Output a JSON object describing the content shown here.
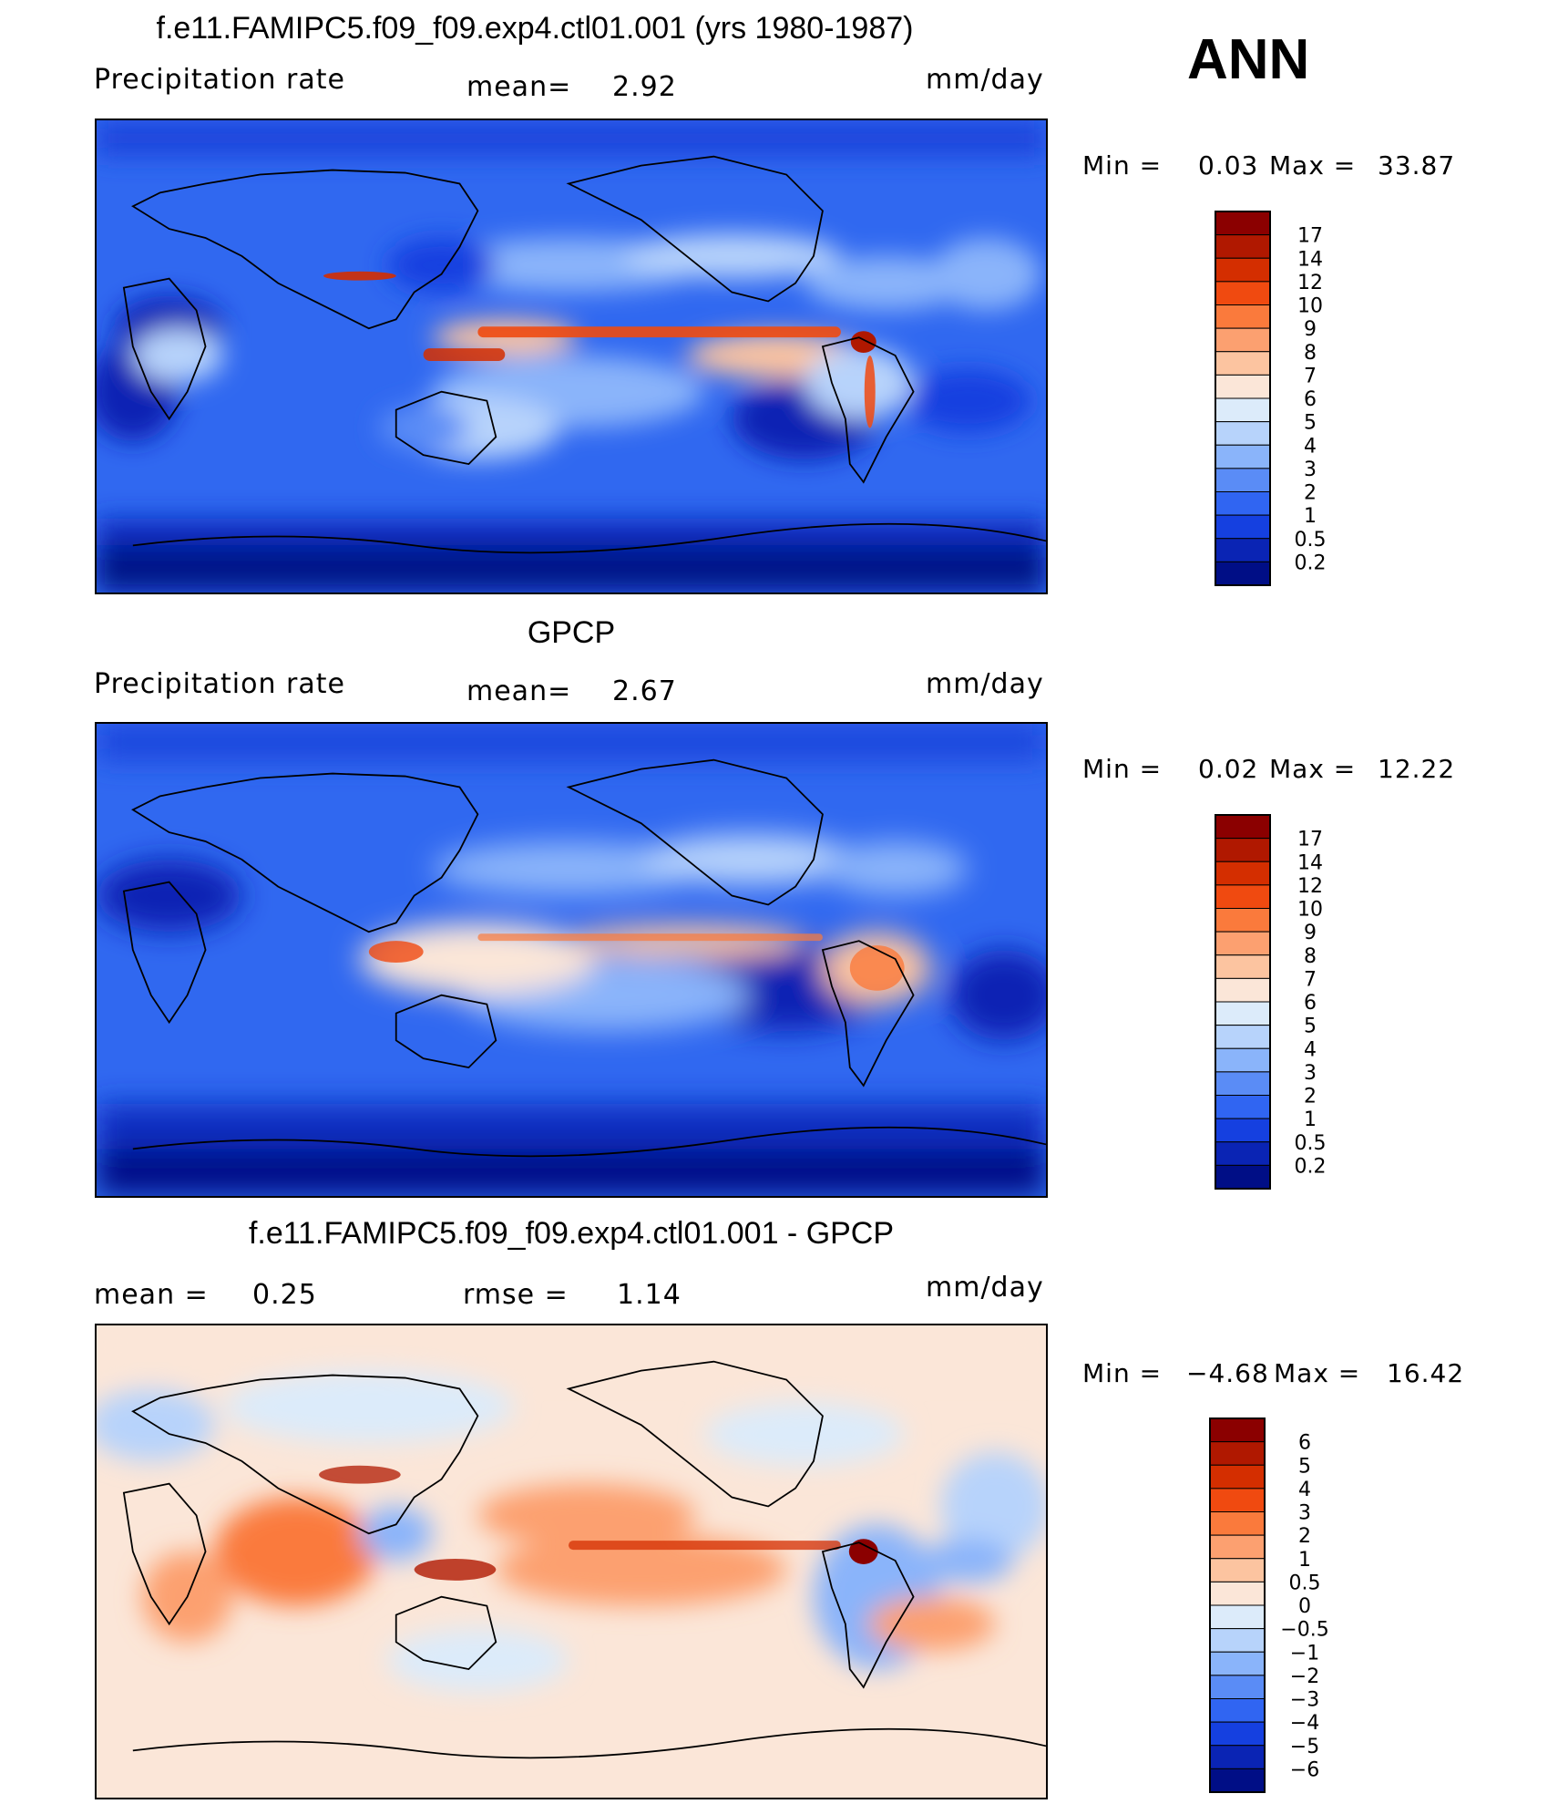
{
  "season": "ANN",
  "chart_data": [
    {
      "type": "heatmap",
      "title": "f.e11.FAMIPC5.f09_f09.exp4.ctl01.001 (yrs 1980-1987)",
      "left_label": "Precipitation  rate",
      "center_label": "mean=",
      "center_value": "2.92",
      "units": "mm/day",
      "min_label": "Min  =",
      "min_value": "0.03",
      "max_label": "Max  =",
      "max_value": "33.87",
      "levels": [
        "17",
        "14",
        "12",
        "10",
        "9",
        "8",
        "7",
        "6",
        "5",
        "4",
        "3",
        "2",
        "1",
        "0.5",
        "0.2"
      ],
      "colors": [
        "#8b0000",
        "#b01800",
        "#d42e00",
        "#f04a10",
        "#fa7a3c",
        "#fca070",
        "#fcc4a0",
        "#fbe6d8",
        "#dcebfa",
        "#b7d3fb",
        "#8ab4fa",
        "#5a8cf6",
        "#3065f2",
        "#1540e0",
        "#0a24b4",
        "#000e86"
      ]
    },
    {
      "type": "heatmap",
      "title": "GPCP",
      "left_label": "Precipitation  rate",
      "center_label": "mean=",
      "center_value": "2.67",
      "units": "mm/day",
      "min_label": "Min  =",
      "min_value": "0.02",
      "max_label": "Max  =",
      "max_value": "12.22",
      "levels": [
        "17",
        "14",
        "12",
        "10",
        "9",
        "8",
        "7",
        "6",
        "5",
        "4",
        "3",
        "2",
        "1",
        "0.5",
        "0.2"
      ],
      "colors": [
        "#8b0000",
        "#b01800",
        "#d42e00",
        "#f04a10",
        "#fa7a3c",
        "#fca070",
        "#fcc4a0",
        "#fbe6d8",
        "#dcebfa",
        "#b7d3fb",
        "#8ab4fa",
        "#5a8cf6",
        "#3065f2",
        "#1540e0",
        "#0a24b4",
        "#000e86"
      ]
    },
    {
      "type": "heatmap",
      "title": "f.e11.FAMIPC5.f09_f09.exp4.ctl01.001 - GPCP",
      "left_label": "mean  =",
      "left_value": "0.25",
      "center_label": "rmse  =",
      "center_value": "1.14",
      "units": "mm/day",
      "min_label": "Min  =",
      "min_value": "−4.68",
      "max_label": "Max  =",
      "max_value": "16.42",
      "levels": [
        "6",
        "5",
        "4",
        "3",
        "2",
        "1",
        "0.5",
        "0",
        "−0.5",
        "−1",
        "−2",
        "−3",
        "−4",
        "−5",
        "−6"
      ],
      "colors": [
        "#8b0000",
        "#b01800",
        "#d42e00",
        "#f04a10",
        "#fa7a3c",
        "#fca070",
        "#fcc4a0",
        "#fbe6d8",
        "#dcebfa",
        "#b7d3fb",
        "#8ab4fa",
        "#5a8cf6",
        "#3065f2",
        "#1540e0",
        "#0a24b4",
        "#000e86"
      ]
    }
  ]
}
